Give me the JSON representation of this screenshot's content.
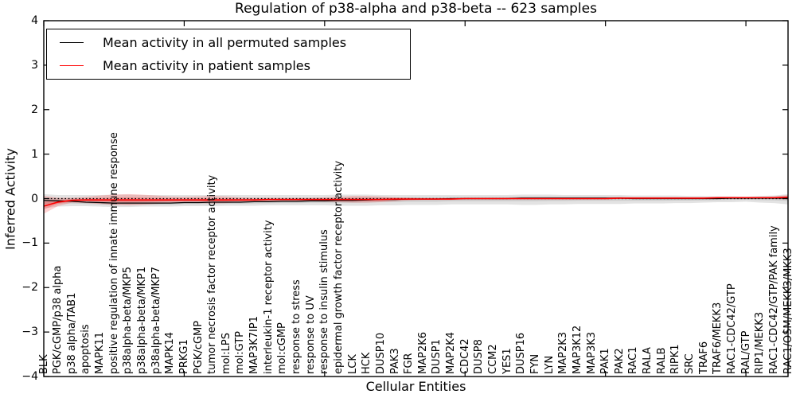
{
  "title": "Regulation of p38-alpha and p38-beta -- 623 samples",
  "axes": {
    "ylabel": "Inferred Activity",
    "xlabel": "Cellular Entities",
    "yticks": [
      "4",
      "3",
      "2",
      "1",
      "0",
      "−1",
      "−2",
      "−3",
      "−4"
    ]
  },
  "legend": {
    "items": [
      {
        "label": "Mean activity in all permuted samples",
        "color": "#000000"
      },
      {
        "label": "Mean activity in patient samples",
        "color": "#ff0000"
      }
    ]
  },
  "colors": {
    "permuted_line": "#000000",
    "patient_line": "#ff0000",
    "permuted_band": "rgba(128,128,128,0.22)",
    "patient_band": "rgba(255,0,0,0.18)",
    "zero_line": "#000000",
    "frame": "#000000"
  },
  "chart_data": {
    "type": "line",
    "title": "Regulation of p38-alpha and p38-beta -- 623 samples",
    "xlabel": "Cellular Entities",
    "ylabel": "Inferred Activity",
    "ylim": [
      -4,
      4
    ],
    "yticks": [
      4,
      3,
      2,
      1,
      0,
      -1,
      -2,
      -3,
      -4
    ],
    "x_tick_indices": [
      0,
      10,
      20,
      30,
      40,
      50
    ],
    "grid": false,
    "legend_position": "upper left",
    "zero_reference_line": 0,
    "categories": [
      "BLK",
      "PGK/cGMP/p38 alpha",
      "p38 alpha/TAB1",
      "apoptosis",
      "MAPK11",
      "positive regulation of innate immune response",
      "p38alpha-beta/MKP5",
      "p38alpha-beta/MKP1",
      "p38alpha-beta/MKP7",
      "MAPK14",
      "PRKG1",
      "PGK/cGMP",
      "tumor necrosis factor receptor activity",
      "mol:LPS",
      "mol:GTP",
      "MAP3K7IP1",
      "interleukin-1 receptor activity",
      "mol:cGMP",
      "response to stress",
      "response to UV",
      "response to insulin stimulus",
      "epidermal growth factor receptor activity",
      "LCK",
      "HCK",
      "DUSP10",
      "PAK3",
      "FGR",
      "MAP2K6",
      "DUSP1",
      "MAP2K4",
      "CDC42",
      "DUSP8",
      "CCM2",
      "YES1",
      "DUSP16",
      "FYN",
      "LYN",
      "MAP2K3",
      "MAP3K12",
      "MAP3K3",
      "PAK1",
      "PAK2",
      "RAC1",
      "RALA",
      "RALB",
      "RIPK1",
      "SRC",
      "TRAF6",
      "TRAF6/MEKK3",
      "RAC1-CDC42/GTP",
      "RAL/GTP",
      "RIP1/MEKK3",
      "RAC1-CDC42/GTP/PAK family",
      "RAC1/OSM/MEKK3/MKK3"
    ],
    "series": [
      {
        "name": "Mean activity in all permuted samples",
        "color": "#000000",
        "values": [
          -0.04,
          -0.05,
          -0.06,
          -0.08,
          -0.09,
          -0.1,
          -0.1,
          -0.1,
          -0.1,
          -0.1,
          -0.09,
          -0.09,
          -0.08,
          -0.08,
          -0.08,
          -0.07,
          -0.07,
          -0.06,
          -0.06,
          -0.05,
          -0.05,
          -0.04,
          -0.04,
          -0.03,
          -0.02,
          -0.02,
          -0.01,
          -0.01,
          -0.01,
          0.0,
          0.0,
          0.0,
          0.0,
          0.0,
          0.01,
          0.01,
          0.01,
          0.01,
          0.01,
          0.01,
          0.01,
          0.01,
          0.0,
          0.0,
          0.0,
          0.0,
          0.0,
          0.0,
          0.0,
          0.01,
          0.01,
          0.01,
          0.01,
          0.01
        ],
        "band_upper": [
          0.1,
          0.08,
          0.08,
          0.08,
          0.08,
          0.09,
          0.09,
          0.08,
          0.08,
          0.08,
          0.08,
          0.08,
          0.08,
          0.08,
          0.08,
          0.08,
          0.08,
          0.08,
          0.08,
          0.08,
          0.08,
          0.09,
          0.09,
          0.09,
          0.08,
          0.08,
          0.08,
          0.08,
          0.08,
          0.08,
          0.08,
          0.08,
          0.08,
          0.08,
          0.09,
          0.09,
          0.09,
          0.08,
          0.08,
          0.08,
          0.08,
          0.08,
          0.07,
          0.07,
          0.07,
          0.07,
          0.06,
          0.06,
          0.05,
          0.05,
          0.04,
          0.06,
          0.07,
          0.1
        ],
        "band_lower": [
          -0.22,
          -0.18,
          -0.17,
          -0.17,
          -0.18,
          -0.19,
          -0.19,
          -0.18,
          -0.18,
          -0.18,
          -0.17,
          -0.17,
          -0.17,
          -0.16,
          -0.16,
          -0.16,
          -0.15,
          -0.15,
          -0.15,
          -0.15,
          -0.15,
          -0.16,
          -0.16,
          -0.16,
          -0.15,
          -0.15,
          -0.14,
          -0.14,
          -0.14,
          -0.13,
          -0.13,
          -0.13,
          -0.13,
          -0.13,
          -0.14,
          -0.14,
          -0.13,
          -0.13,
          -0.12,
          -0.12,
          -0.12,
          -0.12,
          -0.11,
          -0.11,
          -0.11,
          -0.1,
          -0.1,
          -0.09,
          -0.08,
          -0.08,
          -0.07,
          -0.09,
          -0.1,
          -0.13
        ]
      },
      {
        "name": "Mean activity in patient samples",
        "color": "#ff0000",
        "values": [
          -0.17,
          -0.08,
          -0.04,
          -0.03,
          -0.03,
          -0.03,
          -0.03,
          -0.03,
          -0.03,
          -0.03,
          -0.03,
          -0.03,
          -0.03,
          -0.03,
          -0.03,
          -0.03,
          -0.02,
          -0.02,
          -0.02,
          -0.02,
          -0.02,
          -0.02,
          -0.02,
          -0.02,
          -0.02,
          -0.01,
          -0.01,
          -0.01,
          -0.01,
          -0.01,
          0.0,
          0.0,
          0.0,
          0.0,
          0.0,
          0.0,
          0.0,
          0.0,
          0.0,
          0.0,
          0.0,
          0.01,
          0.01,
          0.01,
          0.01,
          0.01,
          0.01,
          0.01,
          0.02,
          0.02,
          0.02,
          0.02,
          0.02,
          0.03
        ],
        "band_upper": [
          0.06,
          0.02,
          0.02,
          0.04,
          0.07,
          0.09,
          0.1,
          0.09,
          0.07,
          0.05,
          0.04,
          0.05,
          0.06,
          0.05,
          0.03,
          0.02,
          0.02,
          0.02,
          0.02,
          0.02,
          0.03,
          0.04,
          0.06,
          0.06,
          0.05,
          0.03,
          0.02,
          0.01,
          0.01,
          0.01,
          0.02,
          0.02,
          0.02,
          0.02,
          0.02,
          0.02,
          0.02,
          0.02,
          0.02,
          0.02,
          0.02,
          0.03,
          0.03,
          0.03,
          0.03,
          0.03,
          0.03,
          0.03,
          0.04,
          0.04,
          0.04,
          0.04,
          0.05,
          0.08
        ],
        "band_lower": [
          -0.34,
          -0.17,
          -0.09,
          -0.1,
          -0.12,
          -0.14,
          -0.15,
          -0.14,
          -0.12,
          -0.1,
          -0.09,
          -0.1,
          -0.11,
          -0.1,
          -0.08,
          -0.07,
          -0.06,
          -0.06,
          -0.06,
          -0.06,
          -0.07,
          -0.08,
          -0.09,
          -0.09,
          -0.08,
          -0.06,
          -0.04,
          -0.03,
          -0.03,
          -0.03,
          -0.02,
          -0.02,
          -0.02,
          -0.02,
          -0.02,
          -0.02,
          -0.02,
          -0.02,
          -0.02,
          -0.02,
          -0.02,
          -0.01,
          -0.01,
          -0.01,
          -0.01,
          -0.01,
          -0.01,
          -0.01,
          0.0,
          0.0,
          0.0,
          0.0,
          -0.01,
          -0.02
        ]
      }
    ]
  }
}
